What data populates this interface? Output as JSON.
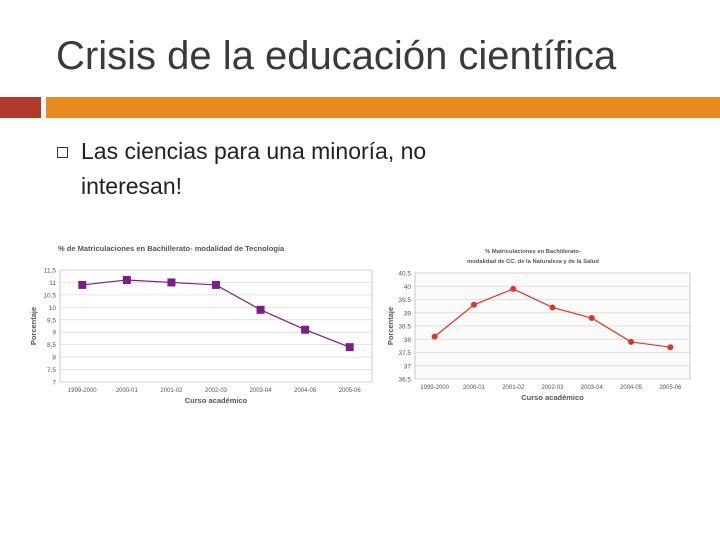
{
  "slide": {
    "title": "Crisis de la educación científica",
    "bullets": [
      "Las ciencias para una minoría, no interesan!"
    ],
    "accent_colors": {
      "left_bar": "#b13a2a",
      "right_bar": "#e88a1e"
    }
  },
  "chart_data": [
    {
      "type": "line",
      "title": "% de Matriculaciones en Bachillerato- modalidad de Tecnología",
      "xlabel": "Curso académico",
      "ylabel": "Porcentaje",
      "categories": [
        "1999-2000",
        "2000-01",
        "2001-02",
        "2002-03",
        "2003-04",
        "2004-05",
        "2005-06"
      ],
      "values": [
        10.9,
        11.1,
        11.0,
        10.9,
        9.9,
        9.1,
        8.4
      ],
      "ylim": [
        7,
        11.5
      ],
      "yticks": [
        "7",
        "7,5",
        "8",
        "8,5",
        "9",
        "9,5",
        "10",
        "10,5",
        "11",
        "11,5"
      ],
      "color": "#7b1f84",
      "marker": "square",
      "grid": true
    },
    {
      "type": "line",
      "title_lines": [
        "% Matriculaciones en Bachillerato-",
        "modalidad de CC. de la Naturaleza y de la Salud"
      ],
      "xlabel": "Curso académico",
      "ylabel": "Porcentaje",
      "categories": [
        "1999-2000",
        "2000-01",
        "2001-02",
        "2002-03",
        "2003-04",
        "2004-05",
        "2005-06"
      ],
      "values": [
        38.1,
        39.3,
        39.9,
        39.2,
        38.8,
        37.9,
        37.7
      ],
      "ylim": [
        36.5,
        40.5
      ],
      "yticks": [
        "36.5",
        "37",
        "37.5",
        "38",
        "38.5",
        "39",
        "39.5",
        "40",
        "40.5"
      ],
      "color": "#e0342a",
      "marker": "circle",
      "grid": true
    }
  ]
}
